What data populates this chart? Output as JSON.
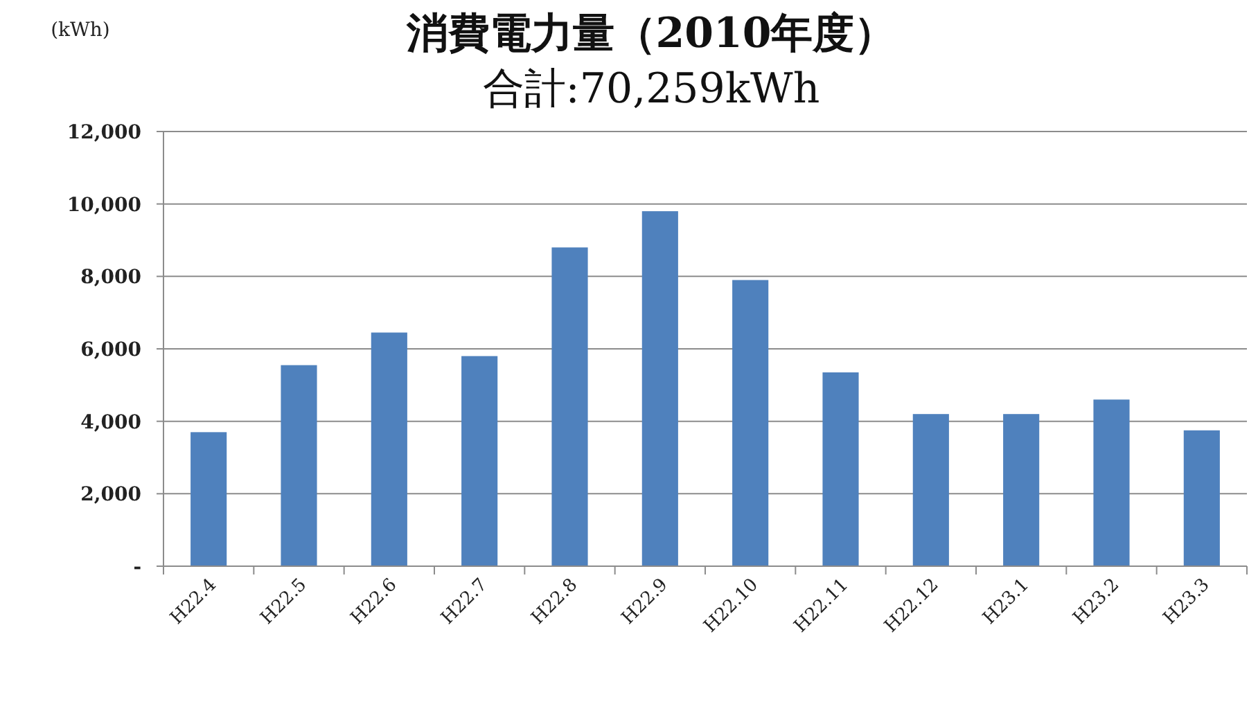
{
  "chart_data": {
    "type": "bar",
    "title": "消費電力量（2010年度）",
    "subtitle": "合計:70,259kWh",
    "ylabel": "(kWh)",
    "categories": [
      "H22.4",
      "H22.5",
      "H22.6",
      "H22.7",
      "H22.8",
      "H22.9",
      "H22.10",
      "H22.11",
      "H22.12",
      "H23.1",
      "H23.2",
      "H23.3"
    ],
    "values": [
      3700,
      5550,
      6450,
      5800,
      8800,
      9800,
      7900,
      5350,
      4200,
      4200,
      4600,
      3750
    ],
    "color": "#4f81bd",
    "ylim": [
      0,
      12000
    ],
    "yticks": [
      {
        "value": 0,
        "label": "-"
      },
      {
        "value": 2000,
        "label": "2,000"
      },
      {
        "value": 4000,
        "label": "4,000"
      },
      {
        "value": 6000,
        "label": "6,000"
      },
      {
        "value": 8000,
        "label": "8,000"
      },
      {
        "value": 10000,
        "label": "10,000"
      },
      {
        "value": 12000,
        "label": "12,000"
      }
    ],
    "grid": "y"
  }
}
